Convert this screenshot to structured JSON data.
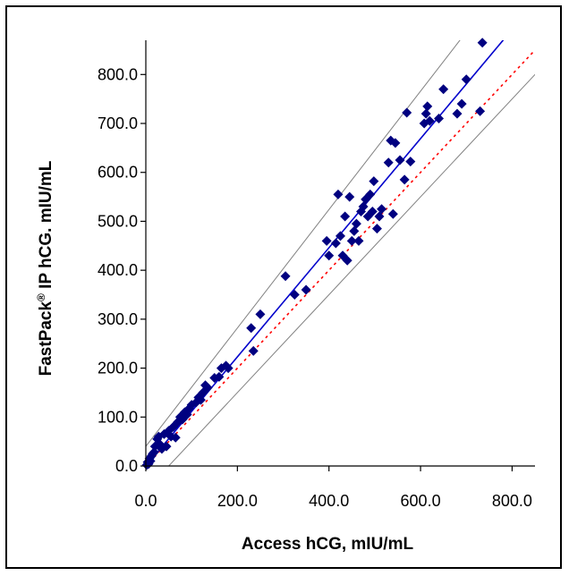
{
  "chart_data": {
    "type": "scatter",
    "title": "",
    "xlabel": "Access hCG, mIU/mL",
    "ylabel_parts": {
      "main": "FastPack",
      "sup": "®",
      "rest": " IP hCG. mIU/mL"
    },
    "xlim": [
      0,
      850
    ],
    "ylim": [
      0,
      870
    ],
    "x_ticks": [
      0,
      200,
      400,
      600,
      800
    ],
    "x_tick_labels": [
      "0.0",
      "200.0",
      "400.0",
      "600.0",
      "800.0"
    ],
    "y_ticks": [
      0,
      100,
      200,
      300,
      400,
      500,
      600,
      700,
      800
    ],
    "y_tick_labels": [
      "0.0",
      "100.0",
      "200.0",
      "300.0",
      "400.0",
      "500.0",
      "600.0",
      "700.0",
      "800.0"
    ],
    "grid": false,
    "legend": "none",
    "colors": {
      "points": "#000080",
      "regression": "#0000cc",
      "identity": "#ff0000",
      "bounds": "#808080"
    },
    "points": [
      [
        2,
        2
      ],
      [
        4,
        8
      ],
      [
        6,
        4
      ],
      [
        8,
        15
      ],
      [
        10,
        10
      ],
      [
        12,
        20
      ],
      [
        15,
        25
      ],
      [
        18,
        28
      ],
      [
        20,
        40
      ],
      [
        25,
        55
      ],
      [
        28,
        60
      ],
      [
        30,
        45
      ],
      [
        35,
        35
      ],
      [
        40,
        65
      ],
      [
        45,
        40
      ],
      [
        50,
        72
      ],
      [
        55,
        60
      ],
      [
        60,
        80
      ],
      [
        65,
        58
      ],
      [
        70,
        90
      ],
      [
        75,
        100
      ],
      [
        80,
        95
      ],
      [
        85,
        110
      ],
      [
        90,
        105
      ],
      [
        95,
        118
      ],
      [
        100,
        125
      ],
      [
        110,
        130
      ],
      [
        115,
        140
      ],
      [
        120,
        135
      ],
      [
        125,
        150
      ],
      [
        130,
        165
      ],
      [
        135,
        160
      ],
      [
        150,
        180
      ],
      [
        160,
        182
      ],
      [
        165,
        200
      ],
      [
        175,
        205
      ],
      [
        180,
        200
      ],
      [
        230,
        282
      ],
      [
        235,
        235
      ],
      [
        250,
        310
      ],
      [
        305,
        388
      ],
      [
        325,
        350
      ],
      [
        350,
        360
      ],
      [
        395,
        460
      ],
      [
        400,
        430
      ],
      [
        415,
        455
      ],
      [
        420,
        555
      ],
      [
        425,
        470
      ],
      [
        430,
        430
      ],
      [
        435,
        510
      ],
      [
        440,
        420
      ],
      [
        445,
        550
      ],
      [
        450,
        460
      ],
      [
        455,
        480
      ],
      [
        460,
        495
      ],
      [
        465,
        460
      ],
      [
        470,
        520
      ],
      [
        475,
        530
      ],
      [
        480,
        545
      ],
      [
        485,
        510
      ],
      [
        490,
        555
      ],
      [
        495,
        520
      ],
      [
        498,
        582
      ],
      [
        505,
        485
      ],
      [
        510,
        510
      ],
      [
        515,
        525
      ],
      [
        530,
        620
      ],
      [
        535,
        665
      ],
      [
        540,
        515
      ],
      [
        545,
        660
      ],
      [
        555,
        625
      ],
      [
        565,
        585
      ],
      [
        570,
        722
      ],
      [
        578,
        622
      ],
      [
        608,
        700
      ],
      [
        612,
        720
      ],
      [
        615,
        735
      ],
      [
        620,
        705
      ],
      [
        640,
        710
      ],
      [
        650,
        770
      ],
      [
        680,
        720
      ],
      [
        690,
        740
      ],
      [
        700,
        790
      ],
      [
        730,
        725
      ],
      [
        735,
        865
      ]
    ],
    "regression_line": {
      "slope": 1.115,
      "intercept": 0
    },
    "identity_line": {
      "slope": 1.0,
      "intercept": 0
    },
    "upper_bound": {
      "slope": 1.21,
      "intercept": 40
    },
    "lower_bound": {
      "slope": 1.0,
      "intercept": -50
    }
  }
}
